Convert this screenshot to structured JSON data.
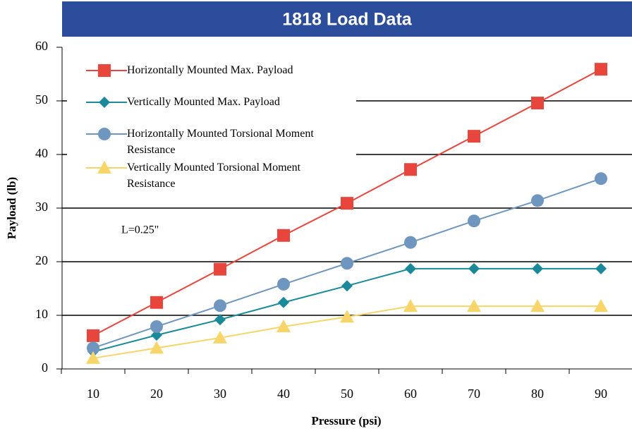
{
  "chart_data": {
    "type": "line",
    "title": "1818 Load Data",
    "x_label": "Pressure (psi)",
    "y_label": "Payload (lb)",
    "annotation": "L=0.25\"",
    "categories": [
      "10",
      "20",
      "30",
      "40",
      "50",
      "60",
      "70",
      "80",
      "90"
    ],
    "series": [
      {
        "name": "Horizontally Mounted Max. Payload",
        "color": "#e8453c",
        "marker": "square",
        "values": [
          6.2,
          12.4,
          18.6,
          24.9,
          30.9,
          37.2,
          43.4,
          49.6,
          55.9
        ]
      },
      {
        "name": "Vertically Mounted Max. Payload",
        "color": "#1a8a9a",
        "marker": "diamond",
        "values": [
          3.2,
          6.3,
          9.2,
          12.4,
          15.5,
          18.7,
          18.7,
          18.7,
          18.7
        ]
      },
      {
        "name": "Horizontally Mounted Torsional Moment Resistance",
        "color": "#6f96bf",
        "marker": "circle",
        "values": [
          3.9,
          7.9,
          11.8,
          15.8,
          19.7,
          23.6,
          27.6,
          31.4,
          35.5
        ]
      },
      {
        "name": "Vertically Mounted Torsional Moment Resistance",
        "color": "#f7d568",
        "marker": "triangle",
        "values": [
          2.0,
          3.9,
          5.8,
          7.9,
          9.7,
          11.7,
          11.7,
          11.7,
          11.7
        ]
      }
    ],
    "ylim": [
      0,
      60
    ],
    "yticks": [
      0,
      10,
      20,
      30,
      40,
      50,
      60
    ],
    "grid": true,
    "legend": "upper left"
  }
}
